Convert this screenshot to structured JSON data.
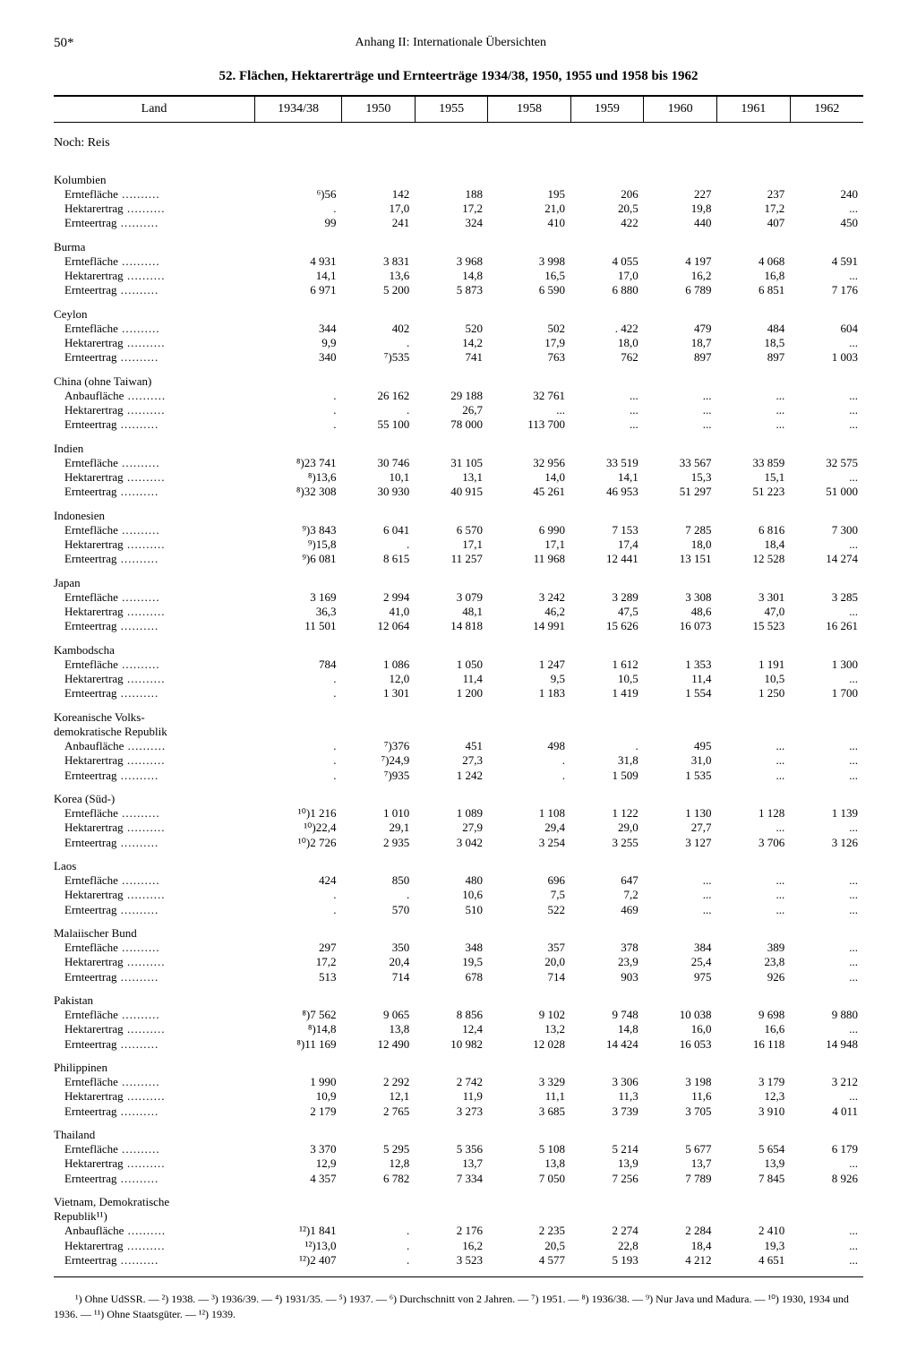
{
  "page_number": "50*",
  "section_header": "Anhang II: Internationale Übersichten",
  "table_title": "52. Flächen, Hektarerträge und Ernteerträge 1934/38, 1950, 1955 und 1958 bis 1962",
  "col_headers": [
    "Land",
    "1934/38",
    "1950",
    "1955",
    "1958",
    "1959",
    "1960",
    "1961",
    "1962"
  ],
  "subheader": "Noch: Reis",
  "metric_labels": {
    "ernteflache": "Erntefläche",
    "hektarertrag": "Hektarertrag",
    "ernteertrag": "Ernteertrag",
    "anbauflache": "Anbaufläche"
  },
  "rows": [
    {
      "country": "Kolumbien",
      "metrics": [
        [
          "Erntefläche",
          "⁶)56",
          "142",
          "188",
          "195",
          "206",
          "227",
          "237",
          "240"
        ],
        [
          "Hektarertrag",
          ".",
          "17,0",
          "17,2",
          "21,0",
          "20,5",
          "19,8",
          "17,2",
          "..."
        ],
        [
          "Ernteertrag",
          "99",
          "241",
          "324",
          "410",
          "422",
          "440",
          "407",
          "450"
        ]
      ]
    },
    {
      "country": "Burma",
      "metrics": [
        [
          "Erntefläche",
          "4 931",
          "3 831",
          "3 968",
          "3 998",
          "4 055",
          "4 197",
          "4 068",
          "4 591"
        ],
        [
          "Hektarertrag",
          "14,1",
          "13,6",
          "14,8",
          "16,5",
          "17,0",
          "16,2",
          "16,8",
          "..."
        ],
        [
          "Ernteertrag",
          "6 971",
          "5 200",
          "5 873",
          "6 590",
          "6 880",
          "6 789",
          "6 851",
          "7 176"
        ]
      ]
    },
    {
      "country": "Ceylon",
      "metrics": [
        [
          "Erntefläche",
          "344",
          "402",
          "520",
          "502",
          ".    422",
          "479",
          "484",
          "604"
        ],
        [
          "Hektarertrag",
          "9,9",
          ".",
          "14,2",
          "17,9",
          "18,0",
          "18,7",
          "18,5",
          "..."
        ],
        [
          "Ernteertrag",
          "340",
          "⁷)535",
          "741",
          "763",
          "762",
          "897",
          "897",
          "1 003"
        ]
      ]
    },
    {
      "country": "China (ohne Taiwan)",
      "metrics": [
        [
          "Anbaufläche",
          ".",
          "26 162",
          "29 188",
          "32 761",
          "...",
          "...",
          "...",
          "..."
        ],
        [
          "Hektarertrag",
          ".",
          ".",
          "26,7",
          "...",
          "...",
          "...",
          "...",
          "..."
        ],
        [
          "Ernteertrag",
          ".",
          "55 100",
          "78 000",
          "113 700",
          "...",
          "...",
          "...",
          "..."
        ]
      ]
    },
    {
      "country": "Indien",
      "metrics": [
        [
          "Erntefläche",
          "⁸)23 741",
          "30 746",
          "31 105",
          "32 956",
          "33 519",
          "33 567",
          "33 859",
          "32 575"
        ],
        [
          "Hektarertrag",
          "⁸)13,6",
          "10,1",
          "13,1",
          "14,0",
          "14,1",
          "15,3",
          "15,1",
          "..."
        ],
        [
          "Ernteertrag",
          "⁸)32 308",
          "30 930",
          "40 915",
          "45 261",
          "46 953",
          "51 297",
          "51 223",
          "51 000"
        ]
      ]
    },
    {
      "country": "Indonesien",
      "metrics": [
        [
          "Erntefläche",
          "⁹)3 843",
          "6 041",
          "6 570",
          "6 990",
          "7 153",
          "7 285",
          "6 816",
          "7 300"
        ],
        [
          "Hektarertrag",
          "⁹)15,8",
          ".",
          "17,1",
          "17,1",
          "17,4",
          "18,0",
          "18,4",
          "..."
        ],
        [
          "Ernteertrag",
          "⁹)6 081",
          "8 615",
          "11 257",
          "11 968",
          "12 441",
          "13 151",
          "12 528",
          "14 274"
        ]
      ]
    },
    {
      "country": "Japan",
      "metrics": [
        [
          "Erntefläche",
          "3 169",
          "2 994",
          "3 079",
          "3 242",
          "3 289",
          "3 308",
          "3 301",
          "3 285"
        ],
        [
          "Hektarertrag",
          "36,3",
          "41,0",
          "48,1",
          "46,2",
          "47,5",
          "48,6",
          "47,0",
          "..."
        ],
        [
          "Ernteertrag",
          "11 501",
          "12 064",
          "14 818",
          "14 991",
          "15 626",
          "16 073",
          "15 523",
          "16 261"
        ]
      ]
    },
    {
      "country": "Kambodscha",
      "metrics": [
        [
          "Erntefläche",
          "784",
          "1 086",
          "1 050",
          "1 247",
          "1 612",
          "1 353",
          "1 191",
          "1 300"
        ],
        [
          "Hektarertrag",
          ".",
          "12,0",
          "11,4",
          "9,5",
          "10,5",
          "11,4",
          "10,5",
          "..."
        ],
        [
          "Ernteertrag",
          ".",
          "1 301",
          "1 200",
          "1 183",
          "1 419",
          "1 554",
          "1 250",
          "1 700"
        ]
      ]
    },
    {
      "country": "Koreanische Volks-",
      "country2": "demokratische Republik",
      "metrics": [
        [
          "Anbaufläche",
          ".",
          "⁷)376",
          "451",
          "498",
          ".",
          "495",
          "...",
          "..."
        ],
        [
          "Hektarertrag",
          ".",
          "⁷)24,9",
          "27,3",
          ".",
          "31,8",
          "31,0",
          "...",
          "..."
        ],
        [
          "Ernteertrag",
          ".",
          "⁷)935",
          "1 242",
          ".",
          "1 509",
          "1 535",
          "...",
          "..."
        ]
      ]
    },
    {
      "country": "Korea (Süd-)",
      "metrics": [
        [
          "Erntefläche",
          "¹⁰)1 216",
          "1 010",
          "1 089",
          "1 108",
          "1 122",
          "1 130",
          "1 128",
          "1 139"
        ],
        [
          "Hektarertrag",
          "¹⁰)22,4",
          "29,1",
          "27,9",
          "29,4",
          "29,0",
          "27,7",
          "...",
          "..."
        ],
        [
          "Ernteertrag",
          "¹⁰)2 726",
          "2 935",
          "3 042",
          "3 254",
          "3 255",
          "3 127",
          "3 706",
          "3 126"
        ]
      ]
    },
    {
      "country": "Laos",
      "metrics": [
        [
          "Erntefläche",
          "424",
          "850",
          "480",
          "696",
          "647",
          "...",
          "...",
          "..."
        ],
        [
          "Hektarertrag",
          ".",
          ".",
          "10,6",
          "7,5",
          "7,2",
          "...",
          "...",
          "..."
        ],
        [
          "Ernteertrag",
          ".",
          "570",
          "510",
          "522",
          "469",
          "...",
          "...",
          "..."
        ]
      ]
    },
    {
      "country": "Malaiischer Bund",
      "metrics": [
        [
          "Erntefläche",
          "297",
          "350",
          "348",
          "357",
          "378",
          "384",
          "389",
          "..."
        ],
        [
          "Hektarertrag",
          "17,2",
          "20,4",
          "19,5",
          "20,0",
          "23,9",
          "25,4",
          "23,8",
          "..."
        ],
        [
          "Ernteertrag",
          "513",
          "714",
          "678",
          "714",
          "903",
          "975",
          "926",
          "..."
        ]
      ]
    },
    {
      "country": "Pakistan",
      "metrics": [
        [
          "Erntefläche",
          "⁸)7 562",
          "9 065",
          "8 856",
          "9 102",
          "9 748",
          "10 038",
          "9 698",
          "9 880"
        ],
        [
          "Hektarertrag",
          "⁸)14,8",
          "13,8",
          "12,4",
          "13,2",
          "14,8",
          "16,0",
          "16,6",
          "..."
        ],
        [
          "Ernteertrag",
          "⁸)11 169",
          "12 490",
          "10 982",
          "12 028",
          "14 424",
          "16 053",
          "16 118",
          "14 948"
        ]
      ]
    },
    {
      "country": "Philippinen",
      "metrics": [
        [
          "Erntefläche",
          "1 990",
          "2 292",
          "2 742",
          "3 329",
          "3 306",
          "3 198",
          "3 179",
          "3 212"
        ],
        [
          "Hektarertrag",
          "10,9",
          "12,1",
          "11,9",
          "11,1",
          "11,3",
          "11,6",
          "12,3",
          "..."
        ],
        [
          "Ernteertrag",
          "2 179",
          "2 765",
          "3 273",
          "3 685",
          "3 739",
          "3 705",
          "3 910",
          "4 011"
        ]
      ]
    },
    {
      "country": "Thailand",
      "metrics": [
        [
          "Erntefläche",
          "3 370",
          "5 295",
          "5 356",
          "5 108",
          "5 214",
          "5 677",
          "5 654",
          "6 179"
        ],
        [
          "Hektarertrag",
          "12,9",
          "12,8",
          "13,7",
          "13,8",
          "13,9",
          "13,7",
          "13,9",
          "..."
        ],
        [
          "Ernteertrag",
          "4 357",
          "6 782",
          "7 334",
          "7 050",
          "7 256",
          "7 789",
          "7 845",
          "8 926"
        ]
      ]
    },
    {
      "country": "Vietnam, Demokratische",
      "country2": "Republik¹¹)",
      "metrics": [
        [
          "Anbaufläche",
          "¹²)1 841",
          ".",
          "2 176",
          "2 235",
          "2 274",
          "2 284",
          "2 410",
          "..."
        ],
        [
          "Hektarertrag",
          "¹²)13,0",
          ".",
          "16,2",
          "20,5",
          "22,8",
          "18,4",
          "19,3",
          "..."
        ],
        [
          "Ernteertrag",
          "¹²)2 407",
          ".",
          "3 523",
          "4 577",
          "5 193",
          "4 212",
          "4 651",
          "..."
        ]
      ]
    }
  ],
  "footnotes": "¹) Ohne UdSSR. — ²) 1938. — ³) 1936/39. — ⁴) 1931/35. — ⁵) 1937. — ⁶) Durchschnitt von 2 Jahren. — ⁷) 1951. — ⁸) 1936/38. — ⁹) Nur Java und Madura. — ¹⁰) 1930, 1934 und 1936. — ¹¹) Ohne Staatsgüter. — ¹²) 1939."
}
